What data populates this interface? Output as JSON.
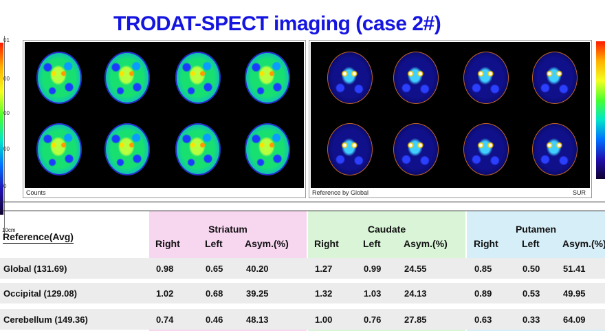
{
  "title": "TRODAT-SPECT imaging (case 2#)",
  "colors": {
    "title": "#1515e0",
    "striatum_bg": "#f7d6f0",
    "caudate_bg": "#d9f4d6",
    "putamen_bg": "#d6eef8"
  },
  "left_scale": {
    "ticks": [
      "01",
      "00",
      "00",
      "00",
      "0"
    ],
    "scale_label": "10cm"
  },
  "panels": {
    "left": {
      "caption": "Counts"
    },
    "right": {
      "caption": "Reference by Global",
      "unit_label": "SUR"
    }
  },
  "table": {
    "reference_header": "Reference(Avg)",
    "groups": [
      "Striatum",
      "Caudate",
      "Putamen"
    ],
    "subheaders": [
      "Right",
      "Left",
      "Asym.(%)"
    ],
    "rows": [
      {
        "reference": "Global (131.69)",
        "values": [
          "0.98",
          "0.65",
          "40.20",
          "1.27",
          "0.99",
          "24.55",
          "0.85",
          "0.50",
          "51.41"
        ]
      },
      {
        "reference": "Occipital (129.08)",
        "values": [
          "1.02",
          "0.68",
          "39.25",
          "1.32",
          "1.03",
          "24.13",
          "0.89",
          "0.53",
          "49.95"
        ]
      },
      {
        "reference": "Cerebellum (149.36)",
        "values": [
          "0.74",
          "0.46",
          "48.13",
          "1.00",
          "0.76",
          "27.85",
          "0.63",
          "0.33",
          "64.09"
        ]
      }
    ]
  }
}
